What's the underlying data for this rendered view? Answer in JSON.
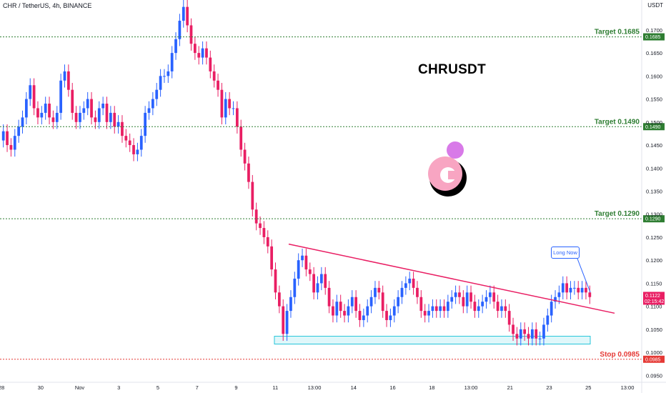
{
  "header": {
    "title": "CHR / TetherUS, 4h, BINANCE",
    "axis_unit": "USDT"
  },
  "symbol_title": "CHRUSDT",
  "note": "Long Now",
  "colors": {
    "up": "#2962ff",
    "down": "#e91e63",
    "target": "#2e7d32",
    "stop": "#e53935",
    "trendline": "#e91e63",
    "zone_fill": "#e0f7fa",
    "zone_border": "#26c6da",
    "last_price_bg": "#e91e63"
  },
  "levels": [
    {
      "name": "target-1",
      "label": "Target 0.1685",
      "value": 0.1685,
      "tag": "0.1685",
      "color": "#2e7d32"
    },
    {
      "name": "target-2",
      "label": "Target 0.1490",
      "value": 0.149,
      "tag": "0.1490",
      "color": "#2e7d32"
    },
    {
      "name": "target-3",
      "label": "Target 0.1290",
      "value": 0.129,
      "tag": "0.1290",
      "color": "#2e7d32"
    },
    {
      "name": "stop",
      "label": "Stop 0.0985",
      "value": 0.0985,
      "tag": "0.0985",
      "color": "#e53935"
    }
  ],
  "last_price": {
    "value": 0.1122,
    "label": "0.1122",
    "countdown": "02:15:42"
  },
  "chart_data": {
    "type": "candlestick",
    "title": "CHR / TetherUS, 4h, BINANCE",
    "ylim": [
      0.0935,
      0.1765
    ],
    "y_ticks": [
      "0.1700",
      "0.1650",
      "0.1600",
      "0.1550",
      "0.1500",
      "0.1450",
      "0.1400",
      "0.1350",
      "0.1300",
      "0.1250",
      "0.1200",
      "0.1150",
      "0.1100",
      "0.1050",
      "0.1000",
      "0.0950"
    ],
    "x_ticks": [
      "28",
      "30",
      "Nov",
      "3",
      "5",
      "7",
      "9",
      "11",
      "13:00",
      "14",
      "16",
      "18",
      "13:00",
      "21",
      "23",
      "25",
      "13:00"
    ],
    "candles_close": [
      0.148,
      0.145,
      0.144,
      0.147,
      0.149,
      0.151,
      0.155,
      0.158,
      0.153,
      0.151,
      0.152,
      0.154,
      0.151,
      0.15,
      0.152,
      0.159,
      0.161,
      0.157,
      0.152,
      0.15,
      0.152,
      0.153,
      0.155,
      0.151,
      0.15,
      0.153,
      0.154,
      0.15,
      0.152,
      0.149,
      0.15,
      0.147,
      0.146,
      0.145,
      0.143,
      0.144,
      0.147,
      0.152,
      0.153,
      0.155,
      0.157,
      0.16,
      0.16,
      0.161,
      0.165,
      0.168,
      0.172,
      0.175,
      0.171,
      0.167,
      0.165,
      0.164,
      0.166,
      0.164,
      0.161,
      0.159,
      0.157,
      0.151,
      0.155,
      0.153,
      0.153,
      0.149,
      0.144,
      0.141,
      0.137,
      0.131,
      0.128,
      0.127,
      0.125,
      0.123,
      0.118,
      0.113,
      0.11,
      0.104,
      0.109,
      0.112,
      0.116,
      0.12,
      0.121,
      0.118,
      0.117,
      0.113,
      0.115,
      0.117,
      0.114,
      0.11,
      0.108,
      0.111,
      0.109,
      0.108,
      0.11,
      0.112,
      0.109,
      0.107,
      0.108,
      0.11,
      0.112,
      0.114,
      0.113,
      0.109,
      0.107,
      0.108,
      0.11,
      0.112,
      0.114,
      0.115,
      0.116,
      0.114,
      0.112,
      0.109,
      0.108,
      0.109,
      0.11,
      0.109,
      0.11,
      0.109,
      0.111,
      0.112,
      0.113,
      0.112,
      0.11,
      0.113,
      0.111,
      0.109,
      0.11,
      0.111,
      0.112,
      0.113,
      0.111,
      0.109,
      0.11,
      0.109,
      0.106,
      0.104,
      0.103,
      0.105,
      0.104,
      0.103,
      0.105,
      0.103,
      0.103,
      0.106,
      0.108,
      0.111,
      0.112,
      0.113,
      0.115,
      0.113,
      0.114,
      0.114,
      0.113,
      0.114,
      0.113,
      0.112
    ],
    "levels": [
      {
        "label": "Target 0.1685",
        "value": 0.1685
      },
      {
        "label": "Target 0.1490",
        "value": 0.149
      },
      {
        "label": "Target 0.1290",
        "value": 0.129
      },
      {
        "label": "Stop 0.0985",
        "value": 0.0985
      }
    ],
    "trendline": {
      "from_price": 0.1235,
      "to_price": 0.1085
    },
    "support_zone": {
      "low": 0.1018,
      "high": 0.1035
    },
    "annotations": [
      "CHRUSDT",
      "Long Now"
    ]
  }
}
